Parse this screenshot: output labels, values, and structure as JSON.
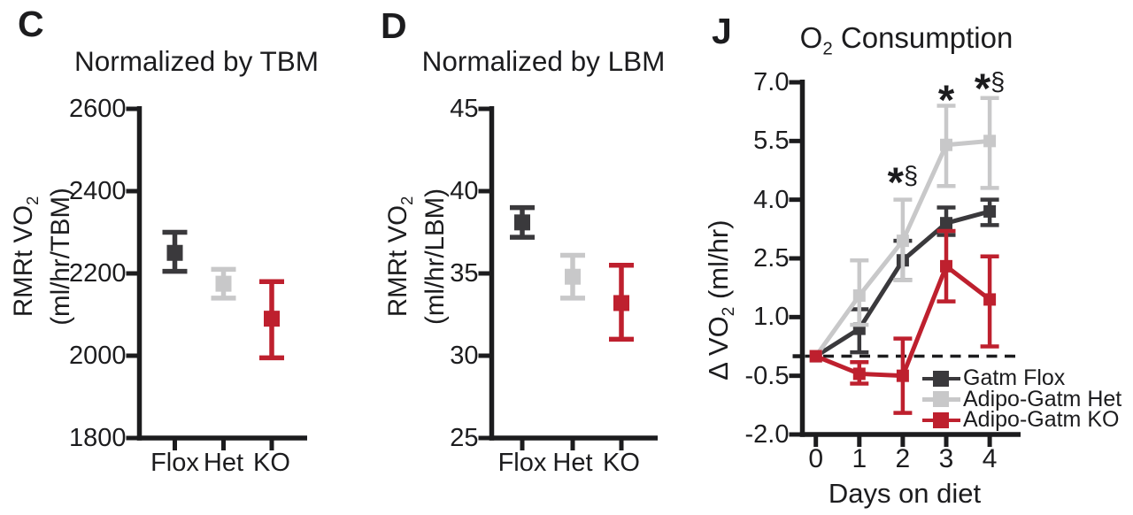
{
  "figure": {
    "background": "#ffffff",
    "ink_color": "#1c1c1e"
  },
  "letters": {
    "c": "C",
    "d": "D",
    "j": "J"
  },
  "chart_data": [
    {
      "id": "c",
      "type": "scatter",
      "title": "Normalized by TBM",
      "ylabel": "RMRt VO2 (ml/hr/TBM)",
      "ylabel_parts": {
        "line1": "RMRt VO",
        "sub": "2",
        "line2": "(ml/hr/TBM)"
      },
      "categories": [
        "Flox",
        "Het",
        "KO"
      ],
      "ylim": [
        1800,
        2600
      ],
      "yticks": [
        1800,
        2000,
        2200,
        2400,
        2600
      ],
      "ytick_labels": [
        "1800",
        "2000",
        "2200",
        "2400",
        "2600"
      ],
      "grid": false,
      "series": [
        {
          "name": "Flox",
          "color": "#3a393c",
          "mean": 2250,
          "lo": 2205,
          "hi": 2300
        },
        {
          "name": "Het",
          "color": "#c8c8c9",
          "mean": 2175,
          "lo": 2140,
          "hi": 2210
        },
        {
          "name": "KO",
          "color": "#be202e",
          "mean": 2090,
          "lo": 1995,
          "hi": 2180
        }
      ]
    },
    {
      "id": "d",
      "type": "scatter",
      "title": "Normalized by LBM",
      "ylabel": "RMRt VO2 (ml/hr/LBM)",
      "ylabel_parts": {
        "line1": "RMRt VO",
        "sub": "2",
        "line2": "(ml/hr/LBM)"
      },
      "categories": [
        "Flox",
        "Het",
        "KO"
      ],
      "ylim": [
        25,
        45
      ],
      "yticks": [
        25,
        30,
        35,
        40,
        45
      ],
      "ytick_labels": [
        "25",
        "30",
        "35",
        "40",
        "45"
      ],
      "grid": false,
      "series": [
        {
          "name": "Flox",
          "color": "#3a393c",
          "mean": 38.1,
          "lo": 37.2,
          "hi": 39.0
        },
        {
          "name": "Het",
          "color": "#c8c8c9",
          "mean": 34.8,
          "lo": 33.5,
          "hi": 36.1
        },
        {
          "name": "KO",
          "color": "#be202e",
          "mean": 33.2,
          "lo": 31.0,
          "hi": 35.5
        }
      ]
    },
    {
      "id": "j",
      "type": "line",
      "title": "O2 Consumption",
      "title_parts": {
        "pre": "O",
        "sub": "2",
        "post": " Consumption"
      },
      "ylabel": "Δ VO2 (ml/hr)",
      "ylabel_parts": {
        "pre": "Δ VO",
        "sub": "2",
        "post": " (ml/hr)"
      },
      "xlabel": "Days on diet",
      "x": [
        0,
        1,
        2,
        3,
        4
      ],
      "xtick_labels": [
        "0",
        "1",
        "2",
        "3",
        "4"
      ],
      "ylim": [
        -2.0,
        7.0
      ],
      "yticks": [
        -2.0,
        -0.5,
        1.0,
        2.5,
        4.0,
        5.5,
        7.0
      ],
      "ytick_labels": [
        "-2.0",
        "-0.5",
        "1.0",
        "2.5",
        "4.0",
        "5.5",
        "7.0"
      ],
      "y_minor_ticks": [
        0
      ],
      "zero_dash_line": true,
      "grid": false,
      "legend_position": "inside-bottom-right",
      "series": [
        {
          "name": "Gatm Flox",
          "color": "#3a393c",
          "values": [
            0,
            0.7,
            2.45,
            3.4,
            3.7
          ],
          "err_lo": [
            null,
            0.1,
            1.95,
            3.1,
            3.35
          ],
          "err_hi": [
            null,
            1.2,
            2.95,
            3.8,
            4.0
          ]
        },
        {
          "name": "Adipo-Gatm Het",
          "color": "#c8c8c9",
          "values": [
            0,
            1.55,
            2.95,
            5.4,
            5.5
          ],
          "err_lo": [
            null,
            0.8,
            1.95,
            4.35,
            4.3
          ],
          "err_hi": [
            null,
            2.45,
            4.0,
            6.4,
            6.6
          ]
        },
        {
          "name": "Adipo-Gatm KO",
          "color": "#be202e",
          "values": [
            0,
            -0.45,
            -0.5,
            2.3,
            1.45
          ],
          "err_lo": [
            null,
            -0.7,
            -1.45,
            1.4,
            0.25
          ],
          "err_hi": [
            null,
            -0.15,
            0.45,
            3.2,
            2.55
          ]
        }
      ],
      "annotations": [
        {
          "x": 2,
          "y": 4.4,
          "text": "*§"
        },
        {
          "x": 3,
          "y": 6.5,
          "text": "*"
        },
        {
          "x": 4,
          "y": 6.8,
          "text": "*§"
        }
      ]
    }
  ]
}
